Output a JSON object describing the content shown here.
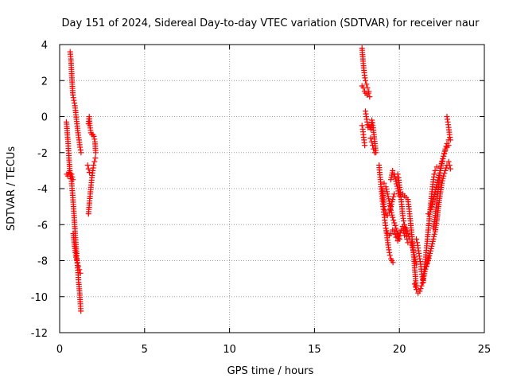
{
  "chart_data": {
    "type": "scatter",
    "title": "Day 151 of 2024, Sidereal Day-to-day VTEC variation (SDTVAR) for receiver naur",
    "xlabel": "GPS time / hours",
    "ylabel": "SDTVAR / TECUs",
    "xlim": [
      0,
      25
    ],
    "ylim": [
      -12,
      4
    ],
    "xticks": [
      0,
      5,
      10,
      15,
      20,
      25
    ],
    "yticks": [
      -12,
      -10,
      -8,
      -6,
      -4,
      -2,
      0,
      2,
      4
    ],
    "grid": true,
    "marker": "+",
    "color": "#ff0000",
    "series": [
      {
        "name": "SDTVAR",
        "segments": [
          {
            "x": [
              0.4,
              0.45,
              0.5,
              0.55,
              0.6,
              0.65,
              0.7,
              0.78,
              0.85,
              0.92,
              1.0,
              1.06,
              1.12,
              1.18,
              1.22,
              1.25
            ],
            "y": [
              -0.3,
              -0.9,
              -1.5,
              -2.3,
              -3.0,
              -3.3,
              -3.6,
              -4.5,
              -5.5,
              -6.6,
              -7.6,
              -8.4,
              -9.2,
              -9.8,
              -10.4,
              -10.8
            ]
          },
          {
            "x": [
              0.42,
              0.48,
              0.55,
              0.62,
              0.7,
              0.78
            ],
            "y": [
              -3.2,
              -3.3,
              -3.1,
              -3.3,
              -3.2,
              -3.5
            ]
          },
          {
            "x": [
              0.62,
              0.66,
              0.7,
              0.74,
              0.78,
              0.84,
              0.9,
              0.96,
              1.02,
              1.08,
              1.14,
              1.2,
              1.26
            ],
            "y": [
              3.6,
              3.2,
              2.5,
              1.8,
              1.2,
              0.9,
              0.6,
              0.1,
              -0.4,
              -0.9,
              -1.3,
              -1.7,
              -2.0
            ]
          },
          {
            "x": [
              0.8,
              0.88,
              0.96,
              1.04,
              1.1,
              1.16,
              1.22
            ],
            "y": [
              -6.5,
              -7.2,
              -7.8,
              -8.1,
              -8.3,
              -8.5,
              -8.7
            ]
          },
          {
            "x": [
              1.7,
              1.75,
              1.8,
              1.85,
              1.9,
              1.95,
              2.0,
              2.05,
              2.1
            ],
            "y": [
              -5.4,
              -4.8,
              -4.3,
              -3.8,
              -3.4,
              -3.0,
              -2.7,
              -2.5,
              -2.3
            ]
          },
          {
            "x": [
              1.7,
              1.74,
              1.78,
              1.84,
              1.9,
              1.96,
              2.02,
              2.08,
              2.12
            ],
            "y": [
              -0.4,
              0.0,
              -0.5,
              -0.9,
              -1.0,
              -1.0,
              -1.1,
              -1.4,
              -2.0
            ]
          },
          {
            "x": [
              1.65,
              1.7,
              1.75
            ],
            "y": [
              -2.7,
              -2.9,
              -3.1
            ]
          },
          {
            "x": [
              17.8,
              17.85,
              17.9,
              17.95,
              18.0,
              18.06,
              18.12,
              18.2
            ],
            "y": [
              3.8,
              3.2,
              2.7,
              2.3,
              2.0,
              1.8,
              1.6,
              1.4
            ]
          },
          {
            "x": [
              17.8,
              17.88,
              17.95,
              18.02,
              18.1,
              18.18,
              18.25
            ],
            "y": [
              1.7,
              1.6,
              1.4,
              1.3,
              1.2,
              1.3,
              1.1
            ]
          },
          {
            "x": [
              17.8,
              17.84,
              17.88,
              17.92,
              17.96
            ],
            "y": [
              -0.5,
              -0.7,
              -1.0,
              -1.3,
              -1.6
            ]
          },
          {
            "x": [
              18.0,
              18.05,
              18.1,
              18.15
            ],
            "y": [
              0.3,
              0.0,
              -0.3,
              -0.6
            ]
          },
          {
            "x": [
              18.2,
              18.26,
              18.32,
              18.38,
              18.44,
              18.5,
              18.56,
              18.62
            ],
            "y": [
              -0.5,
              -0.6,
              -0.7,
              -0.2,
              -0.5,
              -1.0,
              -1.5,
              -2.0
            ]
          },
          {
            "x": [
              18.3,
              18.36,
              18.42,
              18.48,
              18.54
            ],
            "y": [
              -1.2,
              -1.4,
              -1.6,
              -1.8,
              -2.0
            ]
          },
          {
            "x": [
              18.8,
              18.84,
              18.88,
              18.92,
              18.96,
              19.0,
              19.04,
              19.08,
              19.12,
              19.16,
              19.2,
              19.26,
              19.32,
              19.38,
              19.44,
              19.5,
              19.56,
              19.62
            ],
            "y": [
              -2.7,
              -3.1,
              -3.5,
              -3.9,
              -4.3,
              -4.7,
              -5.0,
              -5.3,
              -5.6,
              -5.9,
              -6.2,
              -6.6,
              -7.0,
              -7.4,
              -7.7,
              -7.9,
              -8.0,
              -8.1
            ]
          },
          {
            "x": [
              19.0,
              19.05,
              19.1,
              19.15,
              19.2,
              19.3,
              19.4,
              19.5,
              19.6,
              19.7
            ],
            "y": [
              -4.0,
              -4.5,
              -5.0,
              -5.2,
              -5.4,
              -5.5,
              -5.3,
              -5.0,
              -4.6,
              -4.3
            ]
          },
          {
            "x": [
              19.1,
              19.2,
              19.3,
              19.4,
              19.5,
              19.6,
              19.7,
              19.8,
              19.9,
              20.0
            ],
            "y": [
              -3.7,
              -3.9,
              -4.3,
              -4.7,
              -5.2,
              -5.6,
              -5.9,
              -6.2,
              -6.5,
              -6.8
            ]
          },
          {
            "x": [
              19.2,
              19.3,
              19.4,
              19.5,
              19.6,
              19.7,
              19.8,
              19.9,
              20.0,
              20.1,
              20.2,
              20.3
            ],
            "y": [
              -6.2,
              -6.5,
              -6.6,
              -6.5,
              -6.3,
              -6.4,
              -6.7,
              -6.9,
              -6.6,
              -6.3,
              -6.1,
              -6.6
            ]
          },
          {
            "x": [
              19.5,
              19.6,
              19.7,
              19.8,
              19.9,
              20.0
            ],
            "y": [
              -3.5,
              -3.0,
              -3.2,
              -3.6,
              -4.0,
              -4.4
            ]
          },
          {
            "x": [
              19.9,
              19.95,
              20.0,
              20.05,
              20.1,
              20.15,
              20.2,
              20.25,
              20.3,
              20.35,
              20.4,
              20.45,
              20.5
            ],
            "y": [
              -3.2,
              -3.4,
              -3.8,
              -4.2,
              -4.6,
              -5.0,
              -5.5,
              -5.8,
              -6.0,
              -6.3,
              -6.5,
              -6.8,
              -7.0
            ]
          },
          {
            "x": [
              20.2,
              20.3,
              20.4,
              20.5,
              20.55,
              20.6,
              20.65,
              20.7,
              20.75,
              20.8,
              20.85,
              20.9,
              20.95,
              21.0
            ],
            "y": [
              -4.3,
              -4.4,
              -4.5,
              -4.6,
              -5.0,
              -5.4,
              -5.8,
              -6.3,
              -6.8,
              -7.3,
              -7.8,
              -8.4,
              -9.0,
              -9.6
            ]
          },
          {
            "x": [
              20.4,
              20.5,
              20.6,
              20.7,
              20.8,
              20.9,
              21.0
            ],
            "y": [
              -6.2,
              -6.5,
              -6.8,
              -7.0,
              -7.4,
              -7.8,
              -8.2
            ]
          },
          {
            "x": [
              20.9,
              21.0,
              21.1,
              21.2,
              21.3,
              21.4,
              21.5,
              21.6,
              21.7
            ],
            "y": [
              -9.3,
              -9.6,
              -9.8,
              -9.7,
              -9.4,
              -9.1,
              -8.6,
              -8.2,
              -7.8
            ]
          },
          {
            "x": [
              21.0,
              21.05,
              21.1,
              21.15,
              21.2,
              21.25,
              21.3,
              21.35,
              21.4
            ],
            "y": [
              -6.8,
              -7.0,
              -7.3,
              -7.6,
              -7.9,
              -8.2,
              -8.6,
              -8.9,
              -9.2
            ]
          },
          {
            "x": [
              21.4,
              21.45,
              21.5,
              21.55,
              21.6,
              21.65,
              21.7,
              21.75,
              21.8,
              21.85,
              21.9,
              21.95,
              22.0,
              22.05,
              22.1,
              22.2
            ],
            "y": [
              -9.0,
              -8.6,
              -8.2,
              -7.8,
              -7.3,
              -6.8,
              -6.3,
              -5.8,
              -5.3,
              -4.8,
              -4.3,
              -3.9,
              -3.5,
              -3.2,
              -3.0,
              -2.8
            ]
          },
          {
            "x": [
              21.6,
              21.7,
              21.8,
              21.9,
              22.0,
              22.1,
              22.2,
              22.3,
              22.4,
              22.5,
              22.6,
              22.7,
              22.8
            ],
            "y": [
              -8.3,
              -8.0,
              -7.6,
              -7.2,
              -6.8,
              -6.4,
              -5.8,
              -5.0,
              -4.3,
              -3.7,
              -3.3,
              -3.0,
              -2.7
            ]
          },
          {
            "x": [
              21.7,
              21.8,
              21.9,
              22.0,
              22.1,
              22.2,
              22.3,
              22.4,
              22.5,
              22.6,
              22.7,
              22.8,
              22.9
            ],
            "y": [
              -5.4,
              -5.3,
              -5.0,
              -4.6,
              -4.2,
              -3.8,
              -3.4,
              -3.0,
              -2.6,
              -2.2,
              -1.9,
              -1.7,
              -1.6
            ]
          },
          {
            "x": [
              22.0,
              22.1,
              22.2,
              22.3,
              22.4,
              22.5,
              22.6,
              22.7,
              22.8,
              22.9
            ],
            "y": [
              -6.2,
              -5.6,
              -4.8,
              -3.9,
              -3.0,
              -2.5,
              -2.2,
              -1.8,
              -1.5,
              -1.3
            ]
          },
          {
            "x": [
              22.8,
              22.85,
              22.9,
              22.95,
              23.0
            ],
            "y": [
              0.0,
              -0.3,
              -0.6,
              -1.0,
              -1.3
            ]
          },
          {
            "x": [
              22.9,
              22.95,
              23.0
            ],
            "y": [
              -2.5,
              -2.7,
              -2.9
            ]
          }
        ]
      }
    ]
  }
}
